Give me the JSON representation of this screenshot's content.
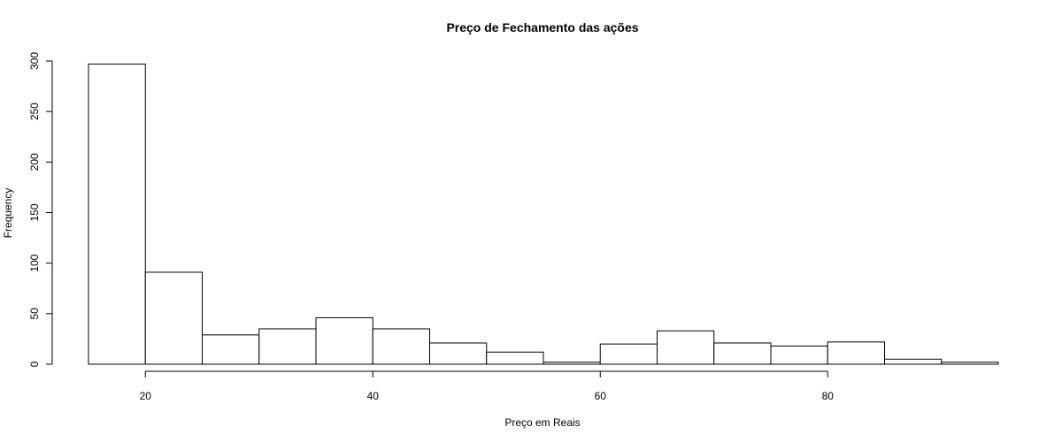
{
  "chart_data": {
    "type": "bar",
    "title": "Preço de Fechamento das ações",
    "xlabel": "Preço em Reais",
    "ylabel": "Frequency",
    "bin_edges": [
      15,
      20,
      25,
      30,
      35,
      40,
      45,
      50,
      55,
      60,
      65,
      70,
      75,
      80,
      85,
      90,
      95
    ],
    "values": [
      297,
      91,
      29,
      35,
      46,
      35,
      21,
      12,
      2,
      20,
      33,
      21,
      18,
      22,
      5,
      2
    ],
    "xlim": [
      15,
      95
    ],
    "ylim": [
      0,
      300
    ],
    "x_ticks": [
      20,
      40,
      60,
      80
    ],
    "y_ticks": [
      0,
      50,
      100,
      150,
      200,
      250,
      300
    ],
    "x_tick_labels": [
      "20",
      "40",
      "60",
      "80"
    ],
    "y_tick_labels": [
      "0",
      "50",
      "100",
      "150",
      "200",
      "250",
      "300"
    ],
    "grid": false,
    "legend": "none",
    "bar_fill": "#ffffff",
    "bar_stroke": "#000000"
  }
}
